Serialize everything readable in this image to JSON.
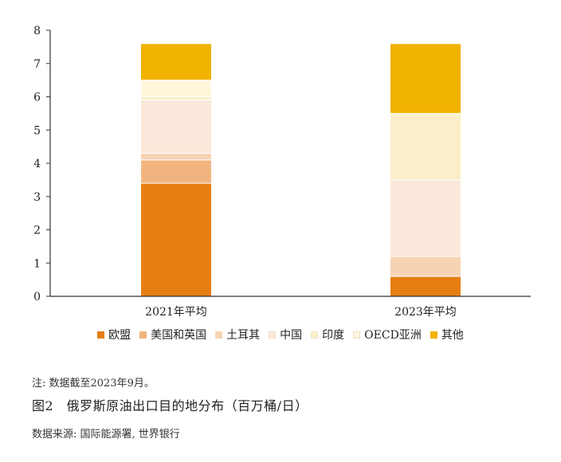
{
  "chart_data": {
    "type": "bar",
    "stacked": true,
    "categories": [
      "2021年平均",
      "2023年平均"
    ],
    "series": [
      {
        "name": "欧盟",
        "color": "#E67E14",
        "values": [
          3.4,
          0.6
        ]
      },
      {
        "name": "美国和英国",
        "color": "#F2B47E",
        "values": [
          0.7,
          0.0
        ]
      },
      {
        "name": "土耳其",
        "color": "#F7D3B4",
        "values": [
          0.2,
          0.6
        ]
      },
      {
        "name": "中国",
        "color": "#FBE8DA",
        "values": [
          1.6,
          2.3
        ]
      },
      {
        "name": "印度",
        "color": "#FCEFC9",
        "values": [
          0.1,
          2.0
        ]
      },
      {
        "name": "OECD亚洲",
        "color": "#FFF6DC",
        "values": [
          0.5,
          0.0
        ]
      },
      {
        "name": "其他",
        "color": "#F2B200",
        "values": [
          1.1,
          2.1
        ]
      }
    ],
    "ylim": [
      0,
      8
    ],
    "yticks": [
      "0",
      "1",
      "2",
      "3",
      "4",
      "5",
      "6",
      "7",
      "8"
    ],
    "grid": false,
    "legend_position": "bottom"
  },
  "note": "注: 数据截至2023年9月。",
  "figure_title": "图2　俄罗斯原油出口目的地分布（百万桶/日）",
  "source": "数据来源: 国际能源署, 世界银行"
}
